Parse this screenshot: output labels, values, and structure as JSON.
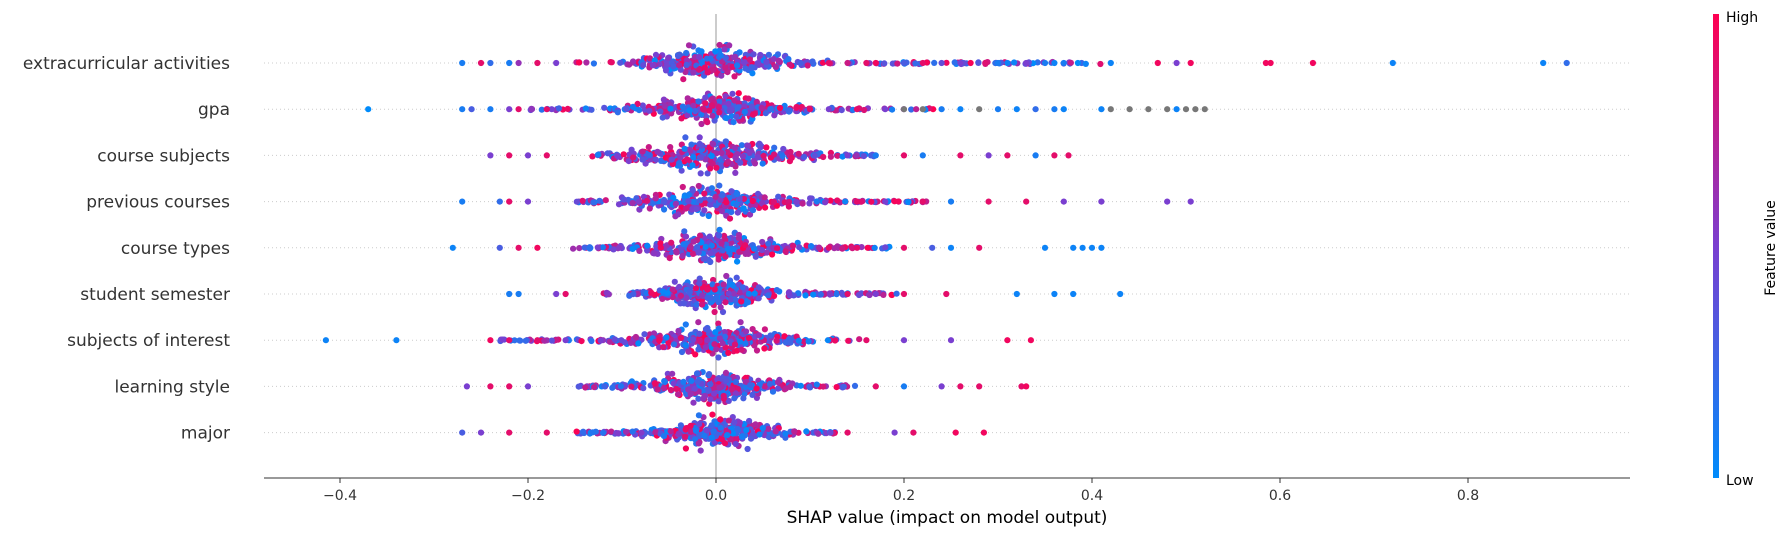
{
  "chart_data": {
    "type": "scatter",
    "subtype": "shap-beeswarm-summary",
    "xlabel": "SHAP value (impact on model output)",
    "xlim": [
      -0.48,
      0.95
    ],
    "xticks": [
      -0.4,
      -0.2,
      0.0,
      0.2,
      0.4,
      0.6,
      0.8
    ],
    "xtick_labels": [
      "−0.4",
      "−0.2",
      "0.0",
      "0.2",
      "0.4",
      "0.6",
      "0.8"
    ],
    "zero_line": true,
    "grid": false,
    "colorbar": {
      "label": "Feature value",
      "high_label": "High",
      "low_label": "Low",
      "low_color": "#008bfb",
      "high_color": "#ff0051",
      "missing_color": "#777777"
    },
    "features": [
      {
        "name": "extracurricular activities",
        "min": -0.27,
        "max": 0.91,
        "density_spread": 0.09,
        "outliers": [
          {
            "x": -0.27,
            "v": 0.1
          },
          {
            "x": -0.25,
            "v": 0.9
          },
          {
            "x": -0.24,
            "v": 0.2
          },
          {
            "x": -0.22,
            "v": 0.1
          },
          {
            "x": -0.21,
            "v": 0.6
          },
          {
            "x": -0.19,
            "v": 0.9
          },
          {
            "x": -0.17,
            "v": 0.5
          },
          {
            "x": 0.09,
            "v": 0.3
          },
          {
            "x": 0.12,
            "v": 0.9
          },
          {
            "x": 0.14,
            "v": 0.8
          },
          {
            "x": 0.16,
            "v": 0.9
          },
          {
            "x": 0.17,
            "v": 0.95
          },
          {
            "x": 0.2,
            "v": 0.3
          },
          {
            "x": 0.22,
            "v": 0.9
          },
          {
            "x": 0.24,
            "v": 0.4
          },
          {
            "x": 0.26,
            "v": 0.5
          },
          {
            "x": 0.3,
            "v": 0.1
          },
          {
            "x": 0.31,
            "v": 0.05
          },
          {
            "x": 0.33,
            "v": 0.5
          },
          {
            "x": 0.35,
            "v": 0.1
          },
          {
            "x": 0.36,
            "v": 0.05
          },
          {
            "x": 0.37,
            "v": 0.1
          },
          {
            "x": 0.385,
            "v": 0.0
          },
          {
            "x": 0.42,
            "v": 0.05
          },
          {
            "x": 0.47,
            "v": 0.95
          },
          {
            "x": 0.49,
            "v": 0.5
          },
          {
            "x": 0.505,
            "v": 0.95
          },
          {
            "x": 0.585,
            "v": 0.95
          },
          {
            "x": 0.59,
            "v": 0.95
          },
          {
            "x": 0.635,
            "v": 0.95
          },
          {
            "x": 0.72,
            "v": 0.05
          },
          {
            "x": 0.88,
            "v": 0.05
          },
          {
            "x": 0.905,
            "v": 0.2
          }
        ]
      },
      {
        "name": "gpa",
        "min": -0.37,
        "max": 0.52,
        "density_spread": 0.08,
        "outliers": [
          {
            "x": -0.37,
            "v": 0.0
          },
          {
            "x": -0.27,
            "v": 0.1
          },
          {
            "x": -0.26,
            "v": 0.3
          },
          {
            "x": -0.24,
            "v": 0.1
          },
          {
            "x": -0.22,
            "v": 0.5
          },
          {
            "x": -0.21,
            "v": 0.9
          },
          {
            "x": -0.18,
            "v": 0.9
          },
          {
            "x": 0.1,
            "v": 0.9
          },
          {
            "x": 0.12,
            "v": 0.5
          },
          {
            "x": 0.15,
            "v": 0.9
          },
          {
            "x": 0.18,
            "v": 0.5
          },
          {
            "x": 0.2,
            "v": "missing"
          },
          {
            "x": 0.22,
            "v": "missing"
          },
          {
            "x": 0.24,
            "v": 0.1
          },
          {
            "x": 0.26,
            "v": 0.05
          },
          {
            "x": 0.28,
            "v": "missing"
          },
          {
            "x": 0.3,
            "v": 0.1
          },
          {
            "x": 0.32,
            "v": 0.05
          },
          {
            "x": 0.34,
            "v": 0.2
          },
          {
            "x": 0.36,
            "v": 0.1
          },
          {
            "x": 0.37,
            "v": 0.05
          },
          {
            "x": 0.41,
            "v": 0.05
          },
          {
            "x": 0.42,
            "v": "missing"
          },
          {
            "x": 0.44,
            "v": "missing"
          },
          {
            "x": 0.46,
            "v": "missing"
          },
          {
            "x": 0.48,
            "v": "missing"
          },
          {
            "x": 0.49,
            "v": 0.05
          },
          {
            "x": 0.5,
            "v": "missing"
          },
          {
            "x": 0.51,
            "v": "missing"
          },
          {
            "x": 0.52,
            "v": "missing"
          }
        ]
      },
      {
        "name": "course subjects",
        "min": -0.24,
        "max": 0.38,
        "density_spread": 0.1,
        "outliers": [
          {
            "x": -0.24,
            "v": 0.5
          },
          {
            "x": -0.22,
            "v": 0.9
          },
          {
            "x": -0.2,
            "v": 0.5
          },
          {
            "x": -0.18,
            "v": 0.9
          },
          {
            "x": 0.14,
            "v": 0.5
          },
          {
            "x": 0.17,
            "v": 0.1
          },
          {
            "x": 0.2,
            "v": 0.9
          },
          {
            "x": 0.22,
            "v": 0.1
          },
          {
            "x": 0.26,
            "v": 0.9
          },
          {
            "x": 0.29,
            "v": 0.5
          },
          {
            "x": 0.31,
            "v": 0.9
          },
          {
            "x": 0.34,
            "v": 0.1
          },
          {
            "x": 0.36,
            "v": 0.9
          },
          {
            "x": 0.375,
            "v": 0.9
          }
        ]
      },
      {
        "name": "previous courses",
        "min": -0.27,
        "max": 0.5,
        "density_spread": 0.09,
        "outliers": [
          {
            "x": -0.27,
            "v": 0.1
          },
          {
            "x": -0.23,
            "v": 0.2
          },
          {
            "x": -0.22,
            "v": 0.9
          },
          {
            "x": -0.2,
            "v": 0.5
          },
          {
            "x": 0.15,
            "v": 0.9
          },
          {
            "x": 0.18,
            "v": 0.5
          },
          {
            "x": 0.22,
            "v": 0.9
          },
          {
            "x": 0.25,
            "v": 0.1
          },
          {
            "x": 0.29,
            "v": 0.9
          },
          {
            "x": 0.33,
            "v": 0.9
          },
          {
            "x": 0.37,
            "v": 0.5
          },
          {
            "x": 0.41,
            "v": 0.5
          },
          {
            "x": 0.48,
            "v": 0.5
          },
          {
            "x": 0.505,
            "v": 0.5
          }
        ]
      },
      {
        "name": "course types",
        "min": -0.28,
        "max": 0.41,
        "density_spread": 0.08,
        "outliers": [
          {
            "x": -0.28,
            "v": 0.05
          },
          {
            "x": -0.23,
            "v": 0.3
          },
          {
            "x": -0.21,
            "v": 0.9
          },
          {
            "x": -0.19,
            "v": 0.95
          },
          {
            "x": 0.12,
            "v": 0.9
          },
          {
            "x": 0.15,
            "v": 0.9
          },
          {
            "x": 0.2,
            "v": 0.9
          },
          {
            "x": 0.23,
            "v": 0.3
          },
          {
            "x": 0.25,
            "v": 0.05
          },
          {
            "x": 0.28,
            "v": 0.9
          },
          {
            "x": 0.35,
            "v": 0.05
          },
          {
            "x": 0.38,
            "v": 0.05
          },
          {
            "x": 0.39,
            "v": 0.05
          },
          {
            "x": 0.4,
            "v": 0.05
          },
          {
            "x": 0.41,
            "v": 0.05
          }
        ]
      },
      {
        "name": "student semester",
        "min": -0.22,
        "max": 0.43,
        "density_spread": 0.07,
        "outliers": [
          {
            "x": -0.22,
            "v": 0.1
          },
          {
            "x": -0.21,
            "v": 0.1
          },
          {
            "x": -0.17,
            "v": 0.5
          },
          {
            "x": -0.16,
            "v": 0.9
          },
          {
            "x": 0.14,
            "v": 0.9
          },
          {
            "x": 0.17,
            "v": 0.5
          },
          {
            "x": 0.2,
            "v": 0.9
          },
          {
            "x": 0.245,
            "v": 0.9
          },
          {
            "x": 0.32,
            "v": 0.05
          },
          {
            "x": 0.36,
            "v": 0.05
          },
          {
            "x": 0.38,
            "v": 0.05
          },
          {
            "x": 0.43,
            "v": 0.05
          }
        ]
      },
      {
        "name": "subjects of interest",
        "min": -0.42,
        "max": 0.34,
        "density_spread": 0.09,
        "outliers": [
          {
            "x": -0.415,
            "v": 0.05
          },
          {
            "x": -0.34,
            "v": 0.05
          },
          {
            "x": -0.24,
            "v": 0.95
          },
          {
            "x": -0.22,
            "v": 0.9
          },
          {
            "x": -0.19,
            "v": 0.9
          },
          {
            "x": -0.16,
            "v": 0.5
          },
          {
            "x": 0.16,
            "v": 0.9
          },
          {
            "x": 0.2,
            "v": 0.5
          },
          {
            "x": 0.25,
            "v": 0.5
          },
          {
            "x": 0.31,
            "v": 0.95
          },
          {
            "x": 0.335,
            "v": 0.95
          }
        ]
      },
      {
        "name": "learning style",
        "min": -0.27,
        "max": 0.33,
        "density_spread": 0.08,
        "outliers": [
          {
            "x": -0.265,
            "v": 0.5
          },
          {
            "x": -0.24,
            "v": 0.9
          },
          {
            "x": -0.22,
            "v": 0.9
          },
          {
            "x": -0.2,
            "v": 0.5
          },
          {
            "x": 0.17,
            "v": 0.9
          },
          {
            "x": 0.2,
            "v": 0.1
          },
          {
            "x": 0.24,
            "v": 0.5
          },
          {
            "x": 0.26,
            "v": 0.9
          },
          {
            "x": 0.28,
            "v": 0.9
          },
          {
            "x": 0.325,
            "v": 0.9
          },
          {
            "x": 0.33,
            "v": 0.95
          }
        ]
      },
      {
        "name": "major",
        "min": -0.27,
        "max": 0.29,
        "density_spread": 0.07,
        "outliers": [
          {
            "x": -0.27,
            "v": 0.3
          },
          {
            "x": -0.25,
            "v": 0.5
          },
          {
            "x": -0.22,
            "v": 0.9
          },
          {
            "x": -0.18,
            "v": 0.9
          },
          {
            "x": 0.14,
            "v": 0.9
          },
          {
            "x": 0.19,
            "v": 0.5
          },
          {
            "x": 0.21,
            "v": 0.9
          },
          {
            "x": 0.255,
            "v": 0.95
          },
          {
            "x": 0.285,
            "v": 0.95
          }
        ]
      }
    ]
  }
}
